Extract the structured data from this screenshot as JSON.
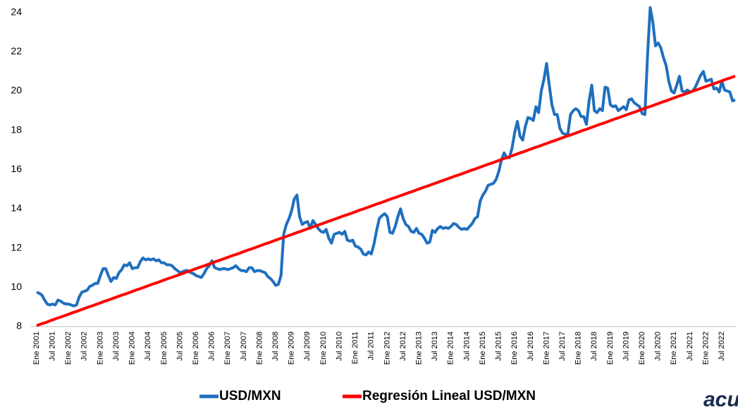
{
  "chart_data": {
    "type": "line",
    "logo": "acus",
    "categories": [
      "Ene 2001",
      null,
      null,
      null,
      null,
      null,
      "Jul 2001",
      null,
      null,
      null,
      null,
      null,
      "Ene 2002",
      null,
      null,
      null,
      null,
      null,
      "Jul 2002",
      null,
      null,
      null,
      null,
      null,
      "Ene 2003",
      null,
      null,
      null,
      null,
      null,
      "Jul 2003",
      null,
      null,
      null,
      null,
      null,
      "Ene 2004",
      null,
      null,
      null,
      null,
      null,
      "Jul 2004",
      null,
      null,
      null,
      null,
      null,
      "Ene 2005",
      null,
      null,
      null,
      null,
      null,
      "Jul 2005",
      null,
      null,
      null,
      null,
      null,
      "Ene 2006",
      null,
      null,
      null,
      null,
      null,
      "Jul 2006",
      null,
      null,
      null,
      null,
      null,
      "Ene 2007",
      null,
      null,
      null,
      null,
      null,
      "Jul 2007",
      null,
      null,
      null,
      null,
      null,
      "Ene 2008",
      null,
      null,
      null,
      null,
      null,
      "Jul 2008",
      null,
      null,
      null,
      null,
      null,
      "Ene 2009",
      null,
      null,
      null,
      null,
      null,
      "Jul 2009",
      null,
      null,
      null,
      null,
      null,
      "Ene 2010",
      null,
      null,
      null,
      null,
      null,
      "Jul 2010",
      null,
      null,
      null,
      null,
      null,
      "Ene 2011",
      null,
      null,
      null,
      null,
      null,
      "Jul 2011",
      null,
      null,
      null,
      null,
      null,
      "Ene 2012",
      null,
      null,
      null,
      null,
      null,
      "Jul 2012",
      null,
      null,
      null,
      null,
      null,
      "Ene 2013",
      null,
      null,
      null,
      null,
      null,
      "Jul 2013",
      null,
      null,
      null,
      null,
      null,
      "Ene 2014",
      null,
      null,
      null,
      null,
      null,
      "Jul 2014",
      null,
      null,
      null,
      null,
      null,
      "Ene 2015",
      null,
      null,
      null,
      null,
      null,
      "Jul 2015",
      null,
      null,
      null,
      null,
      null,
      "Ene 2016",
      null,
      null,
      null,
      null,
      null,
      "Jul 2016",
      null,
      null,
      null,
      null,
      null,
      "Ene 2017",
      null,
      null,
      null,
      null,
      null,
      "Jul 2017",
      null,
      null,
      null,
      null,
      null,
      "Ene 2018",
      null,
      null,
      null,
      null,
      null,
      "Jul 2018",
      null,
      null,
      null,
      null,
      null,
      "Ene 2019",
      null,
      null,
      null,
      null,
      null,
      "Jul 2019",
      null,
      null,
      null,
      null,
      null,
      "Ene 2020",
      null,
      null,
      null,
      null,
      null,
      "Jul 2020",
      null,
      null,
      null,
      null,
      null,
      "Ene 2021",
      null,
      null,
      null,
      null,
      null,
      "Jul 2021",
      null,
      null,
      null,
      null,
      null,
      "Ene 2022",
      null,
      null,
      null,
      null,
      null,
      "Jul 2022",
      null,
      null,
      null,
      null,
      null
    ],
    "series": [
      {
        "name": "USD/MXN",
        "color": "#1f6fbf",
        "values": [
          9.75,
          9.7,
          9.6,
          9.35,
          9.15,
          9.1,
          9.15,
          9.1,
          9.35,
          9.3,
          9.2,
          9.15,
          9.15,
          9.1,
          9.05,
          9.1,
          9.5,
          9.75,
          9.8,
          9.85,
          10.05,
          10.1,
          10.2,
          10.2,
          10.6,
          10.95,
          10.95,
          10.6,
          10.3,
          10.5,
          10.45,
          10.75,
          10.9,
          11.15,
          11.1,
          11.25,
          10.95,
          11.0,
          11.0,
          11.3,
          11.5,
          11.4,
          11.45,
          11.4,
          11.45,
          11.35,
          11.4,
          11.25,
          11.25,
          11.15,
          11.15,
          11.1,
          10.95,
          10.85,
          10.75,
          10.8,
          10.85,
          10.85,
          10.75,
          10.7,
          10.6,
          10.55,
          10.5,
          10.7,
          10.95,
          11.1,
          11.35,
          11.0,
          10.95,
          10.9,
          10.95,
          10.95,
          10.9,
          10.95,
          11.0,
          11.1,
          10.95,
          10.85,
          10.85,
          10.8,
          11.0,
          11.0,
          10.8,
          10.85,
          10.85,
          10.8,
          10.75,
          10.55,
          10.45,
          10.3,
          10.1,
          10.15,
          10.6,
          12.7,
          13.2,
          13.5,
          13.9,
          14.5,
          14.7,
          13.6,
          13.2,
          13.3,
          13.35,
          13.0,
          13.4,
          13.2,
          13.0,
          12.85,
          12.8,
          12.95,
          12.5,
          12.25,
          12.7,
          12.75,
          12.8,
          12.7,
          12.85,
          12.4,
          12.35,
          12.4,
          12.1,
          12.05,
          11.95,
          11.7,
          11.65,
          11.8,
          11.7,
          12.2,
          12.9,
          13.5,
          13.65,
          13.75,
          13.6,
          12.8,
          12.75,
          13.1,
          13.6,
          14.0,
          13.5,
          13.2,
          13.1,
          12.85,
          12.8,
          13.0,
          12.75,
          12.7,
          12.5,
          12.25,
          12.3,
          12.9,
          12.8,
          13.0,
          13.1,
          13.0,
          13.05,
          13.0,
          13.1,
          13.25,
          13.2,
          13.05,
          12.95,
          13.0,
          12.95,
          13.1,
          13.25,
          13.5,
          13.6,
          14.4,
          14.7,
          14.9,
          15.2,
          15.25,
          15.3,
          15.5,
          15.9,
          16.5,
          16.85,
          16.6,
          16.6,
          17.1,
          17.9,
          18.45,
          17.7,
          17.5,
          18.2,
          18.65,
          18.6,
          18.5,
          19.2,
          18.9,
          20.0,
          20.6,
          21.4,
          20.3,
          19.3,
          18.8,
          18.8,
          18.1,
          17.85,
          17.8,
          17.8,
          18.8,
          19.0,
          19.1,
          19.0,
          18.7,
          18.7,
          18.3,
          19.5,
          20.3,
          19.0,
          18.9,
          19.1,
          19.0,
          20.2,
          20.15,
          19.3,
          19.2,
          19.25,
          19.0,
          19.1,
          19.2,
          19.05,
          19.55,
          19.6,
          19.4,
          19.3,
          19.2,
          18.85,
          18.8,
          21.8,
          24.25,
          23.5,
          22.3,
          22.45,
          22.2,
          21.7,
          21.3,
          20.5,
          20.0,
          19.9,
          20.3,
          20.75,
          20.0,
          19.95,
          20.05,
          19.95,
          20.0,
          20.2,
          20.5,
          20.8,
          21.0,
          20.5,
          20.55,
          20.6,
          20.1,
          20.15,
          19.95,
          20.5,
          20.05,
          20.0,
          19.95,
          19.5,
          19.55
        ]
      },
      {
        "name": "Regresión Lineal USD/MXN",
        "color": "#ff0000",
        "values": [
          8.05,
          8.1,
          8.15,
          8.19,
          8.24,
          8.29,
          8.34,
          8.39,
          8.44,
          8.48,
          8.53,
          8.58,
          8.63,
          8.68,
          8.73,
          8.77,
          8.82,
          8.87,
          8.92,
          8.97,
          9.02,
          9.06,
          9.11,
          9.16,
          9.21,
          9.26,
          9.31,
          9.35,
          9.4,
          9.45,
          9.5,
          9.55,
          9.6,
          9.64,
          9.69,
          9.74,
          9.79,
          9.84,
          9.89,
          9.93,
          9.98,
          10.03,
          10.08,
          10.13,
          10.18,
          10.22,
          10.27,
          10.32,
          10.37,
          10.42,
          10.47,
          10.51,
          10.56,
          10.61,
          10.66,
          10.71,
          10.76,
          10.8,
          10.85,
          10.9,
          10.95,
          11,
          11.05,
          11.09,
          11.14,
          11.19,
          11.24,
          11.29,
          11.34,
          11.38,
          11.43,
          11.48,
          11.53,
          11.58,
          11.63,
          11.67,
          11.72,
          11.77,
          11.82,
          11.87,
          11.92,
          11.96,
          12.01,
          12.06,
          12.11,
          12.16,
          12.21,
          12.25,
          12.3,
          12.35,
          12.4,
          12.45,
          12.5,
          12.54,
          12.59,
          12.64,
          12.69,
          12.74,
          12.79,
          12.83,
          12.88,
          12.93,
          12.98,
          13.03,
          13.08,
          13.12,
          13.17,
          13.22,
          13.27,
          13.32,
          13.37,
          13.41,
          13.46,
          13.51,
          13.56,
          13.61,
          13.66,
          13.7,
          13.75,
          13.8,
          13.85,
          13.9,
          13.95,
          13.99,
          14.04,
          14.09,
          14.14,
          14.19,
          14.24,
          14.28,
          14.33,
          14.38,
          14.43,
          14.48,
          14.53,
          14.57,
          14.62,
          14.67,
          14.72,
          14.77,
          14.82,
          14.86,
          14.91,
          14.96,
          15.01,
          15.06,
          15.11,
          15.15,
          15.2,
          15.25,
          15.3,
          15.35,
          15.4,
          15.44,
          15.49,
          15.54,
          15.59,
          15.64,
          15.69,
          15.73,
          15.78,
          15.83,
          15.88,
          15.93,
          15.98,
          16.02,
          16.07,
          16.12,
          16.17,
          16.22,
          16.27,
          16.31,
          16.36,
          16.41,
          16.46,
          16.51,
          16.56,
          16.6,
          16.65,
          16.7,
          16.75,
          16.8,
          16.85,
          16.89,
          16.94,
          16.99,
          17.04,
          17.09,
          17.14,
          17.18,
          17.23,
          17.28,
          17.33,
          17.38,
          17.43,
          17.47,
          17.52,
          17.57,
          17.62,
          17.67,
          17.72,
          17.76,
          17.81,
          17.86,
          17.91,
          17.96,
          18.01,
          18.05,
          18.1,
          18.15,
          18.2,
          18.25,
          18.3,
          18.34,
          18.39,
          18.44,
          18.49,
          18.54,
          18.59,
          18.63,
          18.68,
          18.73,
          18.78,
          18.83,
          18.88,
          18.92,
          18.97,
          19.02,
          19.07,
          19.12,
          19.17,
          19.21,
          19.26,
          19.31,
          19.36,
          19.41,
          19.46,
          19.5,
          19.55,
          19.6,
          19.65,
          19.7,
          19.75,
          19.79,
          19.84,
          19.89,
          19.94,
          19.99,
          20.04,
          20.08,
          20.13,
          20.18,
          20.23,
          20.28,
          20.33,
          20.37,
          20.42,
          20.47,
          20.52,
          20.57,
          20.62,
          20.66,
          20.71,
          20.76
        ]
      }
    ],
    "ylim": [
      8,
      24.6
    ],
    "yticks": [
      8,
      10,
      12,
      14,
      16,
      18,
      20,
      22,
      24
    ],
    "grid": false,
    "legend": "bottom"
  }
}
